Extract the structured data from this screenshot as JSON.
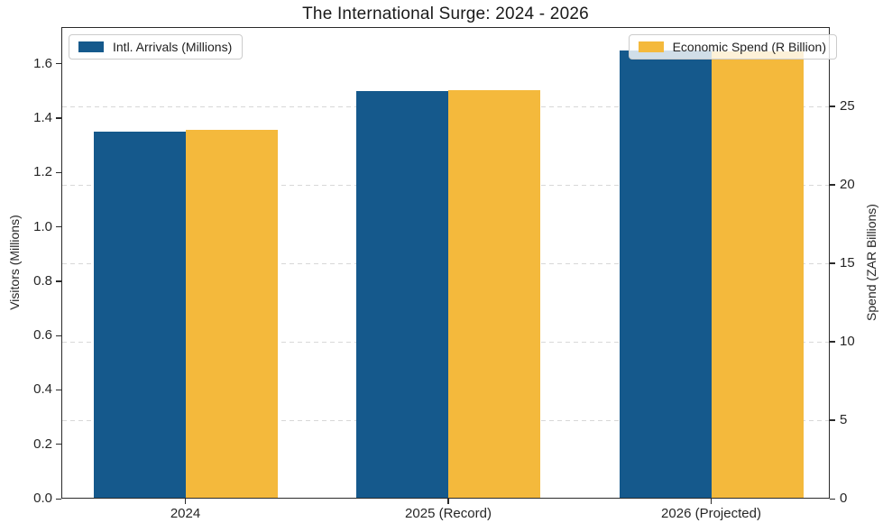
{
  "chart_data": {
    "type": "bar",
    "title": "The International Surge: 2024 - 2026",
    "categories": [
      "2024",
      "2025 (Record)",
      "2026 (Projected)"
    ],
    "series": [
      {
        "name": "Intl. Arrivals (Millions)",
        "axis": "left",
        "color": "#15598C",
        "values": [
          1.35,
          1.5,
          1.65
        ]
      },
      {
        "name": "Economic Spend (R Billion)",
        "axis": "right",
        "color": "#F4B93C",
        "values": [
          23.5,
          26.0,
          28.5
        ]
      }
    ],
    "left_axis": {
      "label": "Visitors (Millions)",
      "tick_labels": [
        "0.0",
        "0.2",
        "0.4",
        "0.6",
        "0.8",
        "1.0",
        "1.2",
        "1.4",
        "1.6"
      ],
      "range": [
        0,
        1.735
      ]
    },
    "right_axis": {
      "label": "Spend (ZAR Billions)",
      "tick_labels": [
        "0",
        "5",
        "10",
        "15",
        "20",
        "25"
      ],
      "range": [
        0,
        30.05
      ]
    },
    "grid": {
      "axis": "right",
      "style": "dashed",
      "color": "#d8d8d8",
      "behind_bars": true
    },
    "legend_positions": [
      "upper left",
      "upper right"
    ]
  }
}
